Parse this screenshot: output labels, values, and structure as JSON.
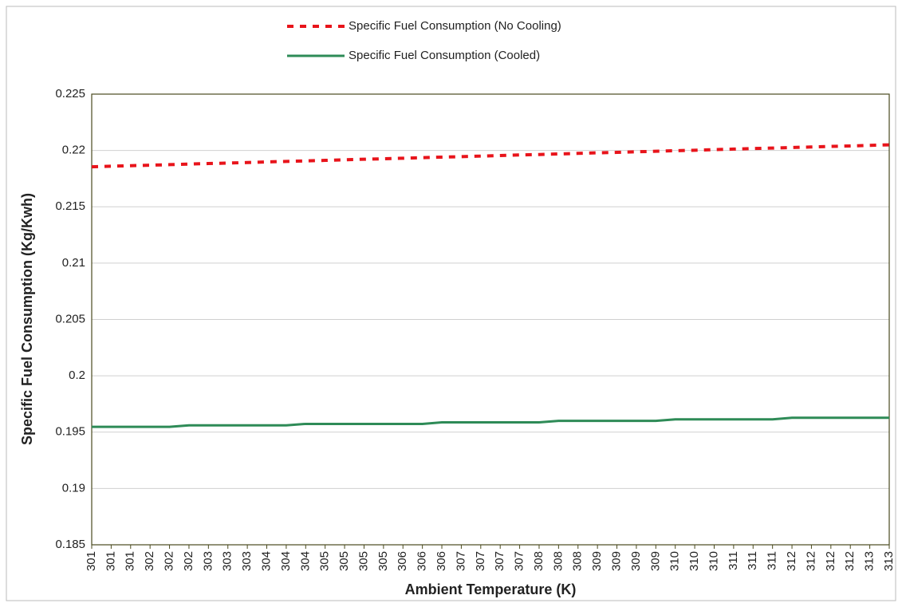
{
  "chart_data": {
    "type": "line",
    "xlabel": "Ambient Temperature (K)",
    "ylabel": "Specific Fuel Consumption (Kg/Kwh)",
    "categories": [
      "301",
      "301",
      "301",
      "302",
      "302",
      "302",
      "303",
      "303",
      "303",
      "304",
      "304",
      "304",
      "305",
      "305",
      "305",
      "305",
      "306",
      "306",
      "306",
      "307",
      "307",
      "307",
      "307",
      "308",
      "308",
      "308",
      "309",
      "309",
      "309",
      "309",
      "310",
      "310",
      "310",
      "311",
      "311",
      "311",
      "312",
      "312",
      "312",
      "312",
      "313",
      "313"
    ],
    "series": [
      {
        "name": "Specific Fuel Consumption (No Cooling)",
        "color": "#e8141b",
        "dash": true,
        "values": [
          0.21855,
          0.2186,
          0.21865,
          0.21869,
          0.21874,
          0.21879,
          0.21884,
          0.21888,
          0.21893,
          0.21898,
          0.21903,
          0.21907,
          0.21912,
          0.21917,
          0.21922,
          0.21926,
          0.21931,
          0.21936,
          0.21941,
          0.21945,
          0.2195,
          0.21955,
          0.2196,
          0.21964,
          0.21969,
          0.21974,
          0.21979,
          0.21983,
          0.21988,
          0.21993,
          0.21998,
          0.22002,
          0.22007,
          0.22012,
          0.22017,
          0.22021,
          0.22026,
          0.22031,
          0.22036,
          0.2204,
          0.22045,
          0.2205
        ]
      },
      {
        "name": "Specific Fuel Consumption (Cooled)",
        "color": "#2e8b57",
        "dash": false,
        "values": [
          0.19547,
          0.19547,
          0.19547,
          0.19547,
          0.19547,
          0.1956,
          0.1956,
          0.1956,
          0.1956,
          0.1956,
          0.1956,
          0.19573,
          0.19573,
          0.19573,
          0.19573,
          0.19573,
          0.19573,
          0.19573,
          0.19587,
          0.19587,
          0.19587,
          0.19587,
          0.19587,
          0.19587,
          0.196,
          0.196,
          0.196,
          0.196,
          0.196,
          0.196,
          0.19613,
          0.19613,
          0.19613,
          0.19613,
          0.19613,
          0.19613,
          0.19627,
          0.19627,
          0.19627,
          0.19627,
          0.19627,
          0.19627
        ]
      }
    ],
    "ylim": [
      0.185,
      0.225
    ],
    "yticks": [
      0.185,
      0.19,
      0.195,
      0.2,
      0.205,
      0.21,
      0.215,
      0.22,
      0.225
    ],
    "grid": true,
    "legend": "top"
  }
}
